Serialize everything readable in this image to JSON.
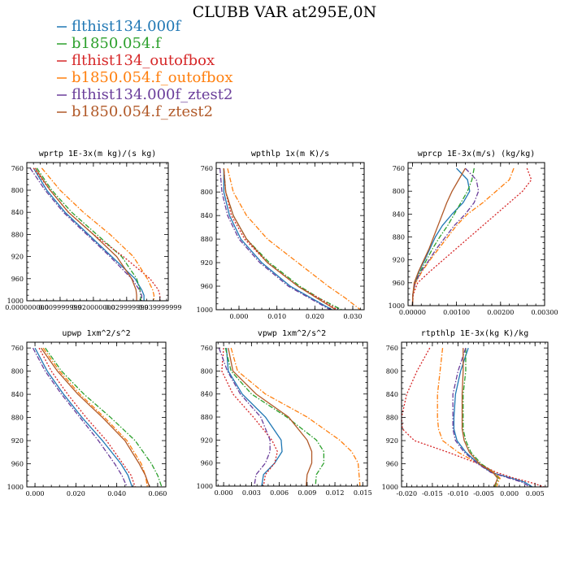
{
  "figure": {
    "title": "CLUBB VAR at295E,0N"
  },
  "legend": [
    {
      "name": "flthist134.000f",
      "color": "#1f77b4",
      "dash": "solid"
    },
    {
      "name": "b1850.054.f",
      "color": "#2ca02c",
      "dash": "dashdot"
    },
    {
      "name": "flthist134_outofbox",
      "color": "#d62728",
      "dash": "dotted"
    },
    {
      "name": "b1850.054.f_outofbox",
      "color": "#ff7f0e",
      "dash": "dashdot"
    },
    {
      "name": "flthist134.000f_ztest2",
      "color": "#6a3d9a",
      "dash": "dashdot"
    },
    {
      "name": "b1850.054.f_ztest2",
      "color": "#b15928",
      "dash": "solid"
    }
  ],
  "chart_data": [
    {
      "type": "line",
      "title": "wprtp 1E-3x(m kg)/(s kg)",
      "xlim": [
        0.0,
        0.0425
      ],
      "ylim": [
        1000,
        750
      ],
      "y_axis": "pressure (inverted)",
      "x_ticks": [
        0.0,
        0.01,
        0.02,
        0.03,
        0.04
      ],
      "x_tick_labels": [
        "0.000000000",
        "0.009999999",
        "0.020000000",
        "0.029999999",
        "0.039999999"
      ],
      "y_ticks": [
        760,
        800,
        840,
        880,
        920,
        960,
        1000
      ],
      "y": [
        760,
        800,
        840,
        880,
        920,
        960,
        980,
        990,
        1000
      ],
      "series": [
        {
          "name": "flthist134.000f",
          "x": [
            0.002,
            0.006,
            0.0115,
            0.0185,
            0.0255,
            0.0325,
            0.0345,
            0.0352,
            0.0352
          ]
        },
        {
          "name": "b1850.054.f",
          "x": [
            0.003,
            0.0075,
            0.0135,
            0.021,
            0.0285,
            0.033,
            0.034,
            0.0342,
            0.0342
          ]
        },
        {
          "name": "flthist134_outofbox",
          "x": [
            0.002,
            0.007,
            0.0125,
            0.02,
            0.029,
            0.037,
            0.0395,
            0.04,
            0.04
          ]
        },
        {
          "name": "b1850.054.f_outofbox",
          "x": [
            0.0045,
            0.01,
            0.017,
            0.025,
            0.032,
            0.0362,
            0.0378,
            0.0382,
            0.0382
          ]
        },
        {
          "name": "flthist134.000f_ztest2",
          "x": [
            0.001,
            0.0055,
            0.011,
            0.018,
            0.025,
            0.0315,
            0.0338,
            0.0345,
            0.0345
          ]
        },
        {
          "name": "b1850.054.f_ztest2",
          "x": [
            0.0025,
            0.007,
            0.0125,
            0.02,
            0.027,
            0.0315,
            0.0328,
            0.033,
            0.033
          ]
        }
      ]
    },
    {
      "type": "line",
      "title": "wpthlp 1x(m K)/s",
      "xlim": [
        -0.006,
        0.033
      ],
      "ylim": [
        1000,
        750
      ],
      "y_axis": "pressure (inverted)",
      "x_ticks": [
        0.0,
        0.01,
        0.02,
        0.03
      ],
      "x_tick_labels": [
        "0.000",
        "0.010",
        "0.020",
        "0.030"
      ],
      "y_ticks": [
        760,
        800,
        840,
        880,
        920,
        960,
        1000
      ],
      "y": [
        760,
        800,
        840,
        880,
        920,
        960,
        980,
        1000
      ],
      "series": [
        {
          "name": "flthist134.000f",
          "x": [
            -0.004,
            -0.004,
            -0.0025,
            0.0005,
            0.006,
            0.0135,
            0.019,
            0.0245
          ]
        },
        {
          "name": "b1850.054.f",
          "x": [
            -0.004,
            -0.0035,
            -0.0015,
            0.002,
            0.008,
            0.016,
            0.021,
            0.027
          ]
        },
        {
          "name": "flthist134_outofbox",
          "x": [
            -0.004,
            -0.0035,
            -0.002,
            0.0015,
            0.0075,
            0.0155,
            0.021,
            0.026
          ]
        },
        {
          "name": "b1850.054.f_outofbox",
          "x": [
            -0.003,
            -0.0015,
            0.002,
            0.0075,
            0.0155,
            0.0235,
            0.028,
            0.032
          ]
        },
        {
          "name": "flthist134.000f_ztest2",
          "x": [
            -0.005,
            -0.0045,
            -0.003,
            0.0,
            0.0055,
            0.013,
            0.0185,
            0.024
          ]
        },
        {
          "name": "b1850.054.f_ztest2",
          "x": [
            -0.004,
            -0.0035,
            -0.0015,
            0.002,
            0.0075,
            0.0155,
            0.0205,
            0.0255
          ]
        }
      ]
    },
    {
      "type": "line",
      "title": "wprcp 1E-3x(m/s) (kg/kg)",
      "xlim": [
        -0.0001,
        0.003
      ],
      "ylim": [
        1000,
        750
      ],
      "y_axis": "pressure (inverted)",
      "x_ticks": [
        0.0,
        0.001,
        0.002,
        0.003
      ],
      "x_tick_labels": [
        "0.00000",
        "0.00100",
        "0.00200",
        "0.00300"
      ],
      "y_ticks": [
        760,
        800,
        840,
        880,
        920,
        960,
        1000
      ],
      "y": [
        760,
        780,
        800,
        820,
        840,
        860,
        880,
        900,
        920,
        940,
        960,
        980,
        1000
      ],
      "series": [
        {
          "name": "flthist134.000f",
          "x": [
            0.001,
            0.00125,
            0.0013,
            0.00115,
            0.0009,
            0.00068,
            0.00052,
            0.0004,
            0.00028,
            0.00015,
            5e-05,
            1e-05,
            0.0
          ]
        },
        {
          "name": "b1850.054.f",
          "x": [
            0.0014,
            0.00135,
            0.00125,
            0.0011,
            0.00095,
            0.0008,
            0.00062,
            0.00046,
            0.00032,
            0.00018,
            6e-05,
            1e-05,
            0.0
          ]
        },
        {
          "name": "flthist134_outofbox",
          "x": [
            0.0026,
            0.0027,
            0.0025,
            0.0022,
            0.0019,
            0.0016,
            0.0013,
            0.001,
            0.0007,
            0.0004,
            0.00012,
            2e-05,
            0.0
          ]
        },
        {
          "name": "b1850.054.f_outofbox",
          "x": [
            0.0023,
            0.0022,
            0.0019,
            0.0016,
            0.00125,
            0.001,
            0.0008,
            0.0006,
            0.0004,
            0.00022,
            7e-05,
            1e-05,
            0.0
          ]
        },
        {
          "name": "flthist134.000f_ztest2",
          "x": [
            0.0012,
            0.00145,
            0.0015,
            0.0014,
            0.0012,
            0.00095,
            0.00075,
            0.00055,
            0.00038,
            0.0002,
            6e-05,
            1e-05,
            0.0
          ]
        },
        {
          "name": "b1850.054.f_ztest2",
          "x": [
            0.0012,
            0.00105,
            0.0009,
            0.00078,
            0.00068,
            0.00058,
            0.00048,
            0.00038,
            0.00026,
            0.00014,
            4e-05,
            1e-05,
            0.0
          ]
        }
      ]
    },
    {
      "type": "line",
      "title": "upwp 1xm^2/s^2",
      "xlim": [
        -0.004,
        0.064
      ],
      "ylim": [
        1000,
        750
      ],
      "y_axis": "pressure (inverted)",
      "x_ticks": [
        0.0,
        0.02,
        0.04,
        0.06
      ],
      "x_tick_labels": [
        "0.000",
        "0.020",
        "0.040",
        "0.060"
      ],
      "y_ticks": [
        760,
        800,
        840,
        880,
        920,
        960,
        1000
      ],
      "y": [
        760,
        800,
        840,
        880,
        920,
        960,
        980,
        1000
      ],
      "series": [
        {
          "name": "flthist134.000f",
          "x": [
            0.0,
            0.006,
            0.014,
            0.023,
            0.033,
            0.042,
            0.0455,
            0.0475
          ]
        },
        {
          "name": "b1850.054.f",
          "x": [
            0.005,
            0.013,
            0.024,
            0.037,
            0.049,
            0.057,
            0.06,
            0.062
          ]
        },
        {
          "name": "flthist134_outofbox",
          "x": [
            0.002,
            0.008,
            0.016,
            0.025,
            0.035,
            0.043,
            0.047,
            0.049
          ]
        },
        {
          "name": "b1850.054.f_outofbox",
          "x": [
            0.004,
            0.012,
            0.022,
            0.034,
            0.045,
            0.052,
            0.054,
            0.055
          ]
        },
        {
          "name": "flthist134.000f_ztest2",
          "x": [
            -0.001,
            0.005,
            0.013,
            0.022,
            0.031,
            0.039,
            0.0425,
            0.045
          ]
        },
        {
          "name": "b1850.054.f_ztest2",
          "x": [
            0.003,
            0.011,
            0.021,
            0.033,
            0.044,
            0.051,
            0.054,
            0.056
          ]
        }
      ]
    },
    {
      "type": "line",
      "title": "vpwp 1xm^2/s^2",
      "xlim": [
        -0.0008,
        0.0155
      ],
      "ylim": [
        1000,
        750
      ],
      "y_axis": "pressure (inverted)",
      "x_ticks": [
        0.0,
        0.003,
        0.006,
        0.009,
        0.012,
        0.015
      ],
      "x_tick_labels": [
        "0.000",
        "0.003",
        "0.006",
        "0.009",
        "0.012",
        "0.015"
      ],
      "y_ticks": [
        760,
        800,
        840,
        880,
        920,
        960,
        1000
      ],
      "y": [
        760,
        800,
        840,
        880,
        920,
        940,
        960,
        980,
        1000
      ],
      "series": [
        {
          "name": "flthist134.000f",
          "x": [
            0.0003,
            0.0005,
            0.002,
            0.0045,
            0.0062,
            0.0063,
            0.0055,
            0.0043,
            0.0041
          ]
        },
        {
          "name": "b1850.054.f",
          "x": [
            0.0002,
            0.0008,
            0.003,
            0.0068,
            0.01,
            0.0108,
            0.0108,
            0.01,
            0.0099
          ]
        },
        {
          "name": "flthist134_outofbox",
          "x": [
            0.0,
            -0.0002,
            0.001,
            0.0032,
            0.0052,
            0.0058,
            0.0055,
            0.0045,
            0.0043
          ]
        },
        {
          "name": "b1850.054.f_outofbox",
          "x": [
            0.0008,
            0.0015,
            0.0045,
            0.009,
            0.0125,
            0.0138,
            0.0145,
            0.0146,
            0.0147
          ]
        },
        {
          "name": "flthist134.000f_ztest2",
          "x": [
            -0.0005,
            0.0004,
            0.0018,
            0.004,
            0.005,
            0.005,
            0.0045,
            0.0035,
            0.0033
          ]
        },
        {
          "name": "b1850.054.f_ztest2",
          "x": [
            0.0005,
            0.001,
            0.0035,
            0.007,
            0.009,
            0.0095,
            0.0095,
            0.009,
            0.0089
          ]
        }
      ]
    },
    {
      "type": "line",
      "title": "rtpthlp 1E-3x(kg K)/kg",
      "xlim": [
        -0.021,
        0.0075
      ],
      "ylim": [
        1000,
        750
      ],
      "y_axis": "pressure (inverted)",
      "x_ticks": [
        -0.02,
        -0.015,
        -0.01,
        -0.005,
        0.0,
        0.005
      ],
      "x_tick_labels": [
        "-0.020",
        "-0.015",
        "-0.010",
        "-0.005",
        "0.000",
        "0.005"
      ],
      "y_ticks": [
        760,
        800,
        840,
        880,
        920,
        960,
        1000
      ],
      "y": [
        760,
        800,
        840,
        880,
        900,
        920,
        940,
        960,
        975,
        985,
        992,
        1000
      ],
      "series": [
        {
          "name": "flthist134.000f",
          "x": [
            -0.008,
            -0.0095,
            -0.0105,
            -0.0108,
            -0.0108,
            -0.0102,
            -0.0085,
            -0.006,
            -0.0035,
            0.0005,
            0.003,
            0.0045
          ]
        },
        {
          "name": "b1850.054.f",
          "x": [
            -0.0085,
            -0.0085,
            -0.009,
            -0.009,
            -0.009,
            -0.0085,
            -0.0075,
            -0.0055,
            -0.003,
            -0.002,
            -0.0025,
            -0.0028
          ]
        },
        {
          "name": "flthist134_outofbox",
          "x": [
            -0.0155,
            -0.018,
            -0.02,
            -0.021,
            -0.0208,
            -0.0185,
            -0.012,
            -0.006,
            -0.0025,
            0.001,
            0.004,
            0.0068
          ]
        },
        {
          "name": "b1850.054.f_outofbox",
          "x": [
            -0.013,
            -0.0135,
            -0.014,
            -0.014,
            -0.0138,
            -0.013,
            -0.01,
            -0.006,
            -0.003,
            -0.0018,
            -0.0022,
            -0.0025
          ]
        },
        {
          "name": "flthist134.000f_ztest2",
          "x": [
            -0.0085,
            -0.01,
            -0.011,
            -0.011,
            -0.011,
            -0.0105,
            -0.0088,
            -0.0062,
            -0.0036,
            0.0,
            0.0025,
            0.004
          ]
        },
        {
          "name": "b1850.054.f_ztest2",
          "x": [
            -0.009,
            -0.009,
            -0.0092,
            -0.0092,
            -0.0092,
            -0.0088,
            -0.0078,
            -0.0058,
            -0.0032,
            -0.0023,
            -0.0026,
            -0.003
          ]
        }
      ]
    }
  ]
}
